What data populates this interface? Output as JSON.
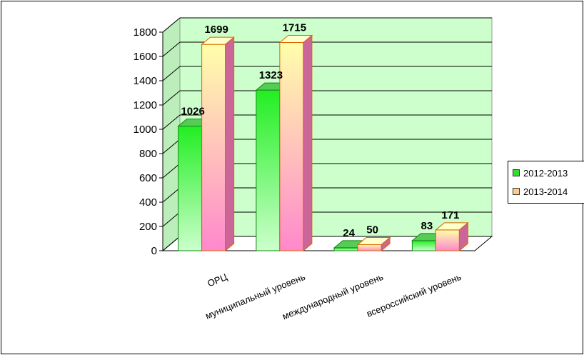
{
  "chart_data": {
    "type": "bar",
    "categories": [
      "ОРЦ",
      "муниципальный уровень",
      "международный уровень",
      "всероссийский уровень"
    ],
    "series": [
      {
        "name": "2012-2013",
        "values": [
          1026,
          1323,
          24,
          83
        ]
      },
      {
        "name": "2013-2014",
        "values": [
          1699,
          1715,
          50,
          171
        ]
      }
    ],
    "yticks": [
      "0",
      "200",
      "400",
      "600",
      "800",
      "1000",
      "1200",
      "1400",
      "1600",
      "1800"
    ],
    "ylim": [
      0,
      1800
    ],
    "grid": true,
    "legend_position": "right",
    "colors": {
      "plot_background": "#ccffcc",
      "series_1": "#33dd33",
      "series_2": "#ff99cc",
      "series_2_top": "#ffffcc"
    }
  }
}
